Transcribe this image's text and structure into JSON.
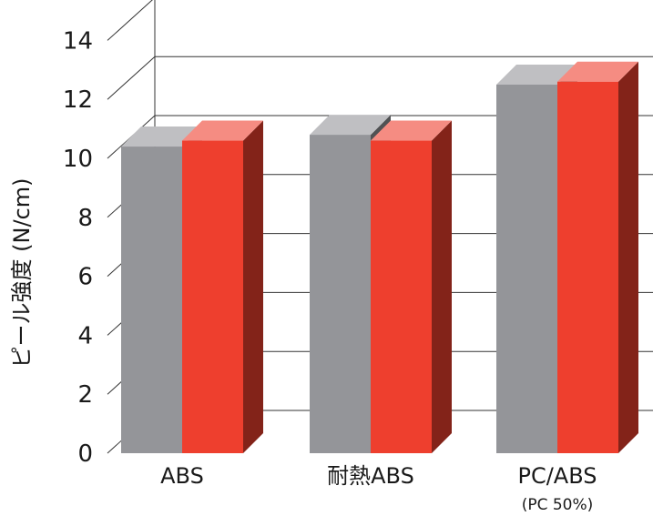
{
  "chart_data": {
    "type": "bar",
    "style": "3d-grouped",
    "categories": [
      "ABS",
      "耐熱ABS",
      "PC/ABS"
    ],
    "category_sublabels": [
      "",
      "",
      "(PC 50%)"
    ],
    "series": [
      {
        "values": [
          10.4,
          10.8,
          12.5
        ],
        "color": "#949599"
      },
      {
        "values": [
          10.6,
          10.6,
          12.6
        ],
        "color": "#ee3f2e"
      }
    ],
    "ylabel": "ピール強度 (N/cm)",
    "ylim": [
      0,
      14
    ],
    "yticks": [
      0,
      2,
      4,
      6,
      8,
      10,
      12,
      14
    ],
    "ytick_labels": [
      "0",
      "2",
      "4",
      "6",
      "8",
      "10",
      "12",
      "14"
    ],
    "grid": true
  }
}
